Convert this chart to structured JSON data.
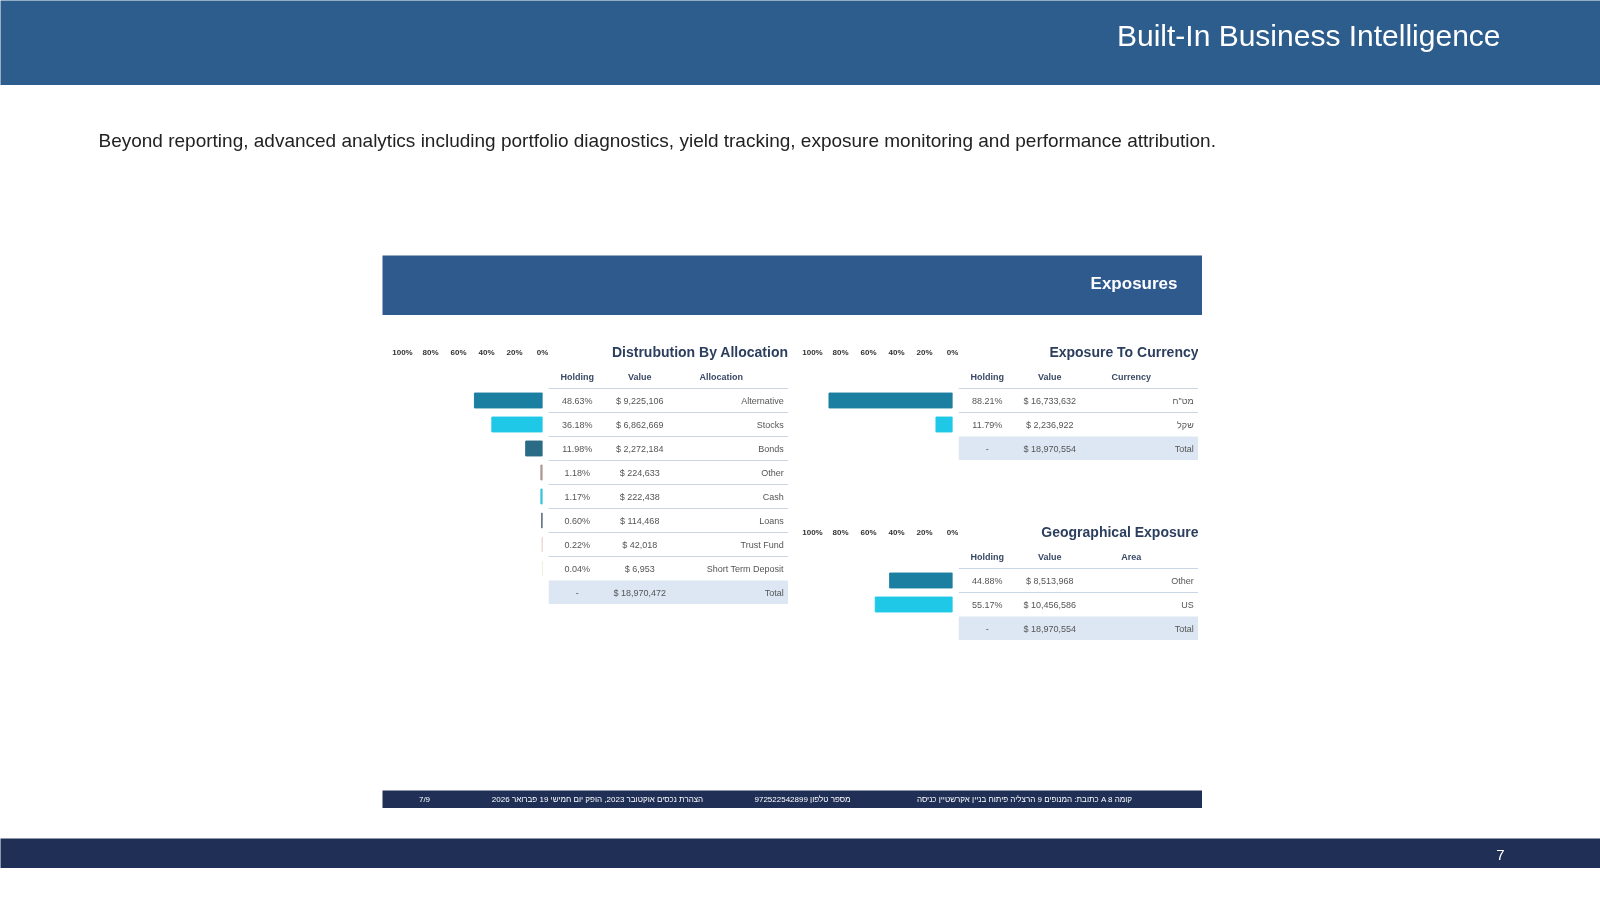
{
  "chart_data": [
    {
      "type": "bar",
      "orientation": "horizontal",
      "categories": [
        "Alternative",
        "Stocks",
        "Bonds",
        "Other",
        "Cash",
        "Loans",
        "Trust Fund",
        "Short Term Deposit"
      ],
      "values": [
        48.63,
        36.18,
        11.98,
        1.18,
        1.17,
        0.6,
        0.22,
        0.04
      ],
      "colors": [
        "#1a7fa0",
        "#1ec8e6",
        "#2a6b85",
        "#b09a95",
        "#3cc6d6",
        "#5a6b7b",
        "#e8c8c8",
        "#f0e8d0"
      ],
      "value_labels": [
        "48.63%",
        "36.18%",
        "11.98%",
        "1.18%",
        "1.17%",
        "0.60%",
        "0.22%",
        "0.04%"
      ],
      "xlim": [
        100,
        0
      ],
      "xticks": [
        {
          "value": 100,
          "label": "100%"
        },
        {
          "value": 80,
          "label": "80%"
        },
        {
          "value": 60,
          "label": "60%"
        },
        {
          "value": 40,
          "label": "40%"
        },
        {
          "value": 20,
          "label": "20%"
        },
        {
          "value": 0,
          "label": "0%"
        }
      ],
      "tick_labels": "x",
      "annotations": [
        "Holding",
        "Value",
        "Allocation",
        "$ 9,225,106",
        "$ 6,862,669",
        "$ 2,272,184",
        "$ 224,633",
        "$ 222,438",
        "$ 114,468",
        "$ 42,018",
        "$ 6,953",
        "-",
        "$ 18,970,472",
        "Total"
      ]
    },
    {
      "type": "bar",
      "orientation": "horizontal",
      "categories": [
        "מט\"ח",
        "שקל"
      ],
      "values": [
        88.21,
        11.79
      ],
      "colors": [
        "#1a7fa0",
        "#1ec8e6"
      ],
      "value_labels": [
        "88.21%",
        "11.79%"
      ],
      "xlim": [
        100,
        0
      ],
      "xticks": [
        {
          "value": 100,
          "label": "100%"
        },
        {
          "value": 80,
          "label": "80%"
        },
        {
          "value": 60,
          "label": "60%"
        },
        {
          "value": 40,
          "label": "40%"
        },
        {
          "value": 20,
          "label": "20%"
        },
        {
          "value": 0,
          "label": "0%"
        }
      ],
      "tick_labels": "x",
      "annotations": [
        "Holding",
        "Value",
        "Currency",
        "$ 16,733,632",
        "$ 2,236,922",
        "-",
        "$ 18,970,554",
        "Total"
      ]
    },
    {
      "type": "bar",
      "orientation": "horizontal",
      "categories": [
        "Other",
        "US"
      ],
      "values": [
        44.88,
        55.17
      ],
      "colors": [
        "#1a7fa0",
        "#1ec8e6"
      ],
      "value_labels": [
        "44.88%",
        "55.17%"
      ],
      "xlim": [
        100,
        0
      ],
      "xticks": [
        {
          "value": 100,
          "label": "100%"
        },
        {
          "value": 80,
          "label": "80%"
        },
        {
          "value": 60,
          "label": "60%"
        },
        {
          "value": 40,
          "label": "40%"
        },
        {
          "value": 20,
          "label": "20%"
        },
        {
          "value": 0,
          "label": "0%"
        }
      ],
      "tick_labels": "x",
      "annotations": [
        "Holding",
        "Value",
        "Area",
        "$ 8,513,968",
        "$ 10,456,586",
        "-",
        "$ 18,970,554",
        "Total"
      ]
    },
    {
      "type": "other",
      "title": "Built-In Business Intelligence",
      "subtitle": "Beyond reporting, advanced analytics including portfolio diagnostics, yield tracking, exposure monitoring and performance attribution.",
      "annotations": [
        "Exposures",
        "7/9",
        "כתובת: המנופים 9 הרצליה פיתוח בניין אקרשטיין כניסה A קומה 8",
        "מספר טלפון 972522542899",
        "הצהרת נכסים אוקטובר 2023, הופק יום חמישי 19 פברואר 2026",
        "7",
        "Distrubution By Allocation",
        "Exposure To Currency",
        "Geographical Exposure"
      ]
    }
  ]
}
